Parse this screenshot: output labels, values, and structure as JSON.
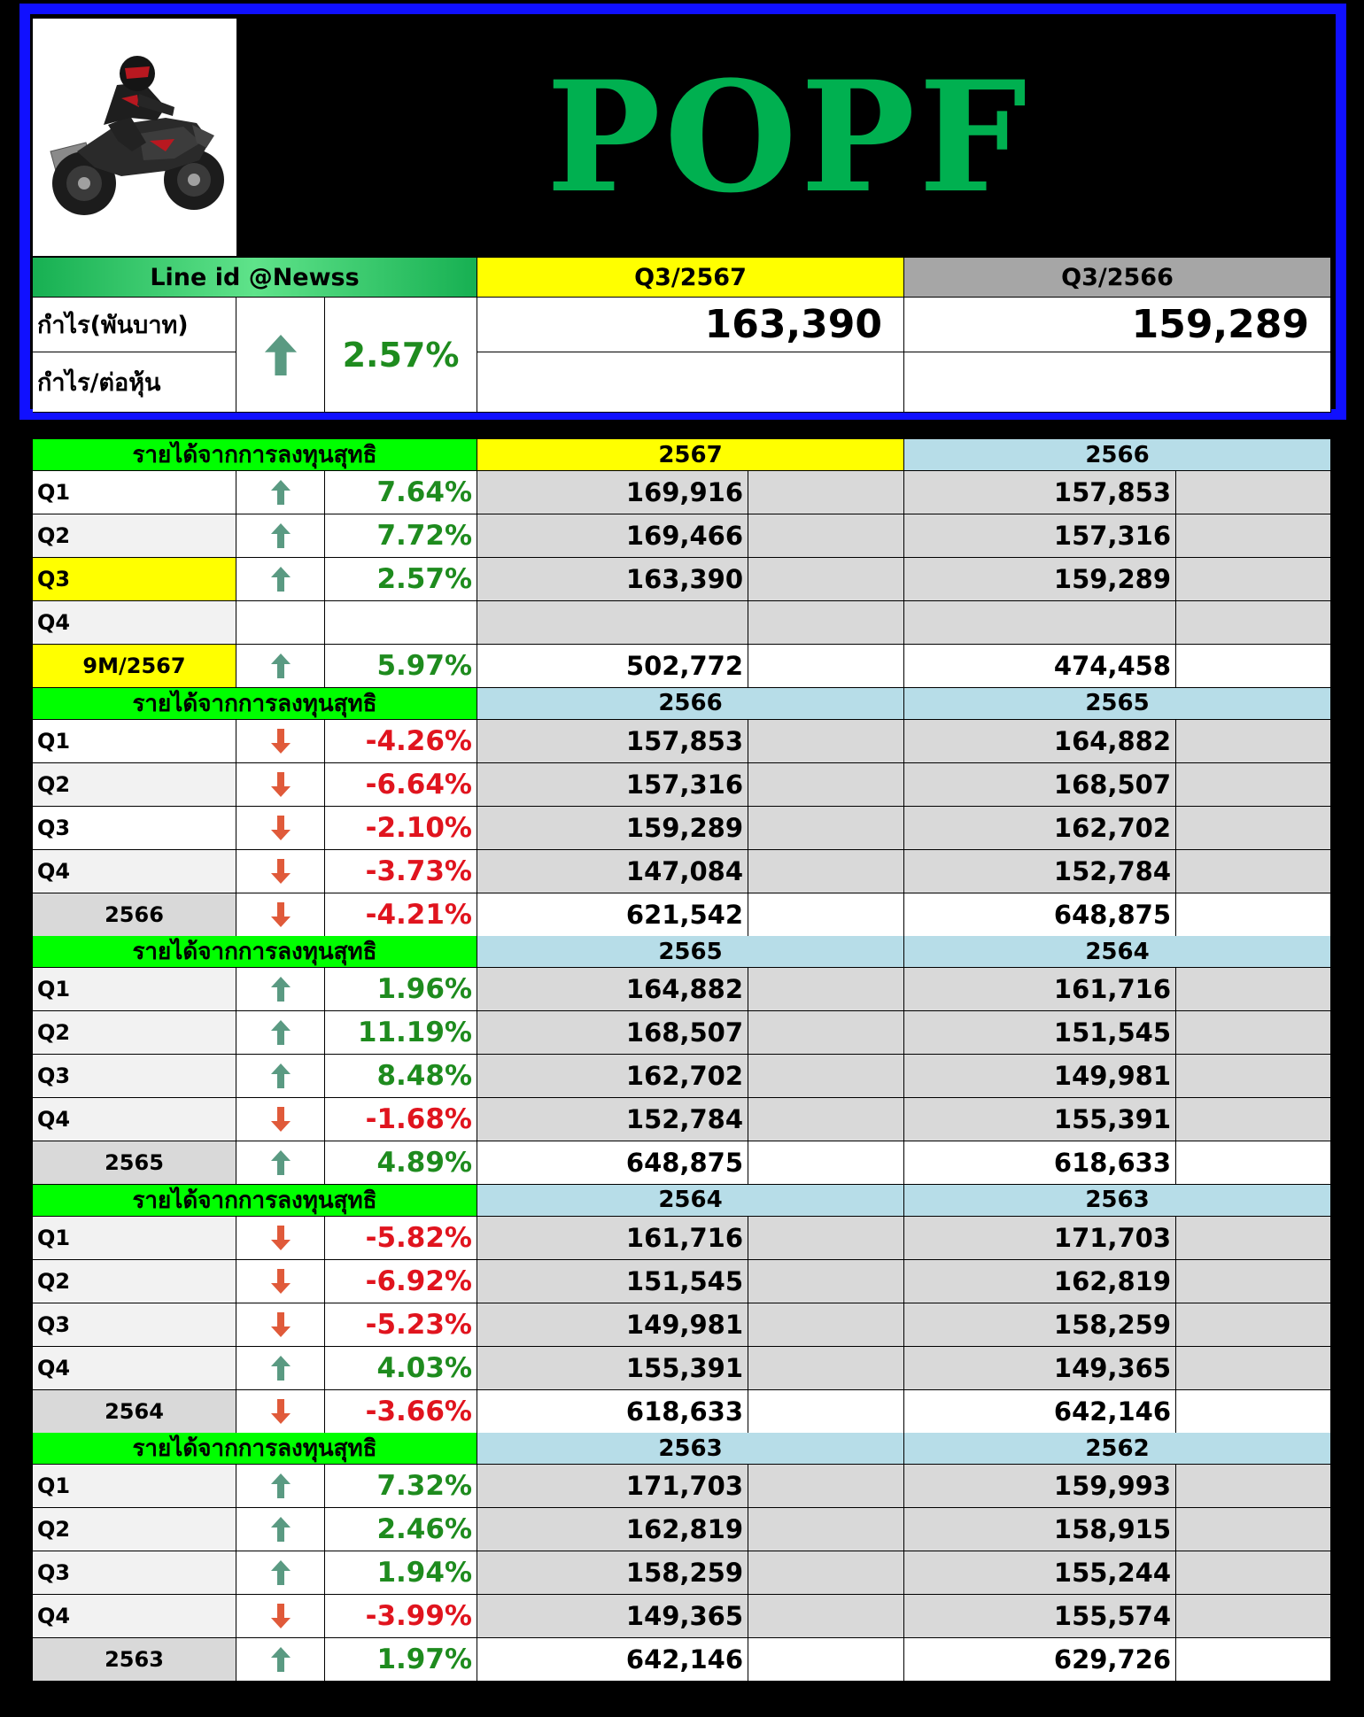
{
  "header": {
    "ticker": "POPF",
    "line_id": "Line id @Newss",
    "current_period": "Q3/2567",
    "previous_period": "Q3/2566",
    "row_labels": [
      "กำไร(พันบาท)",
      "กำไร/ต่อหุ้น"
    ],
    "trend": "up",
    "change": "2.57%",
    "current_value": "163,390",
    "previous_value": "159,289",
    "current_eps": "",
    "previous_eps": ""
  },
  "colors": {
    "title_green": "#00b050",
    "header_border_blue": "#1010ff",
    "bright_green_header": "#00ff00",
    "yellow_highlight": "#ffff00",
    "light_blue_header": "#b7dde8",
    "gray_cell": "#d9d9d9",
    "positive_text": "#1e8b1e",
    "negative_text": "#e0141e",
    "up_arrow": "#5a9a82",
    "down_arrow": "#e05a3a"
  },
  "sections": [
    {
      "label": "รายได้จากการลงทุนสุทธิ",
      "year_a": "2567",
      "year_b": "2566",
      "rows": [
        {
          "label": "Q1",
          "trend": "up",
          "change": "7.64%",
          "a": "169,916",
          "b": "157,853"
        },
        {
          "label": "Q2",
          "trend": "up",
          "change": "7.72%",
          "a": "169,466",
          "b": "157,316"
        },
        {
          "label": "Q3",
          "trend": "up",
          "change": "2.57%",
          "a": "163,390",
          "b": "159,289"
        },
        {
          "label": "Q4",
          "trend": "",
          "change": "",
          "a": "",
          "b": ""
        }
      ],
      "total": {
        "label": "9M/2567",
        "trend": "up",
        "change": "5.97%",
        "a": "502,772",
        "b": "474,458"
      }
    },
    {
      "label": "รายได้จากการลงทุนสุทธิ",
      "year_a": "2566",
      "year_b": "2565",
      "rows": [
        {
          "label": "Q1",
          "trend": "down",
          "change": "-4.26%",
          "a": "157,853",
          "b": "164,882"
        },
        {
          "label": "Q2",
          "trend": "down",
          "change": "-6.64%",
          "a": "157,316",
          "b": "168,507"
        },
        {
          "label": "Q3",
          "trend": "down",
          "change": "-2.10%",
          "a": "159,289",
          "b": "162,702"
        },
        {
          "label": "Q4",
          "trend": "down",
          "change": "-3.73%",
          "a": "147,084",
          "b": "152,784"
        }
      ],
      "total": {
        "label": "2566",
        "trend": "down",
        "change": "-4.21%",
        "a": "621,542",
        "b": "648,875"
      }
    },
    {
      "label": "รายได้จากการลงทุนสุทธิ",
      "year_a": "2565",
      "year_b": "2564",
      "rows": [
        {
          "label": "Q1",
          "trend": "up",
          "change": "1.96%",
          "a": "164,882",
          "b": "161,716"
        },
        {
          "label": "Q2",
          "trend": "up",
          "change": "11.19%",
          "a": "168,507",
          "b": "151,545"
        },
        {
          "label": "Q3",
          "trend": "up",
          "change": "8.48%",
          "a": "162,702",
          "b": "149,981"
        },
        {
          "label": "Q4",
          "trend": "down",
          "change": "-1.68%",
          "a": "152,784",
          "b": "155,391"
        }
      ],
      "total": {
        "label": "2565",
        "trend": "up",
        "change": "4.89%",
        "a": "648,875",
        "b": "618,633"
      }
    },
    {
      "label": "รายได้จากการลงทุนสุทธิ",
      "year_a": "2564",
      "year_b": "2563",
      "rows": [
        {
          "label": "Q1",
          "trend": "down",
          "change": "-5.82%",
          "a": "161,716",
          "b": "171,703"
        },
        {
          "label": "Q2",
          "trend": "down",
          "change": "-6.92%",
          "a": "151,545",
          "b": "162,819"
        },
        {
          "label": "Q3",
          "trend": "down",
          "change": "-5.23%",
          "a": "149,981",
          "b": "158,259"
        },
        {
          "label": "Q4",
          "trend": "up",
          "change": "4.03%",
          "a": "155,391",
          "b": "149,365"
        }
      ],
      "total": {
        "label": "2564",
        "trend": "down",
        "change": "-3.66%",
        "a": "618,633",
        "b": "642,146"
      }
    },
    {
      "label": "รายได้จากการลงทุนสุทธิ",
      "year_a": "2563",
      "year_b": "2562",
      "rows": [
        {
          "label": "Q1",
          "trend": "up",
          "change": "7.32%",
          "a": "171,703",
          "b": "159,993"
        },
        {
          "label": "Q2",
          "trend": "up",
          "change": "2.46%",
          "a": "162,819",
          "b": "158,915"
        },
        {
          "label": "Q3",
          "trend": "up",
          "change": "1.94%",
          "a": "158,259",
          "b": "155,244"
        },
        {
          "label": "Q4",
          "trend": "down",
          "change": "-3.99%",
          "a": "149,365",
          "b": "155,574"
        }
      ],
      "total": {
        "label": "2563",
        "trend": "up",
        "change": "1.97%",
        "a": "642,146",
        "b": "629,726"
      }
    }
  ]
}
